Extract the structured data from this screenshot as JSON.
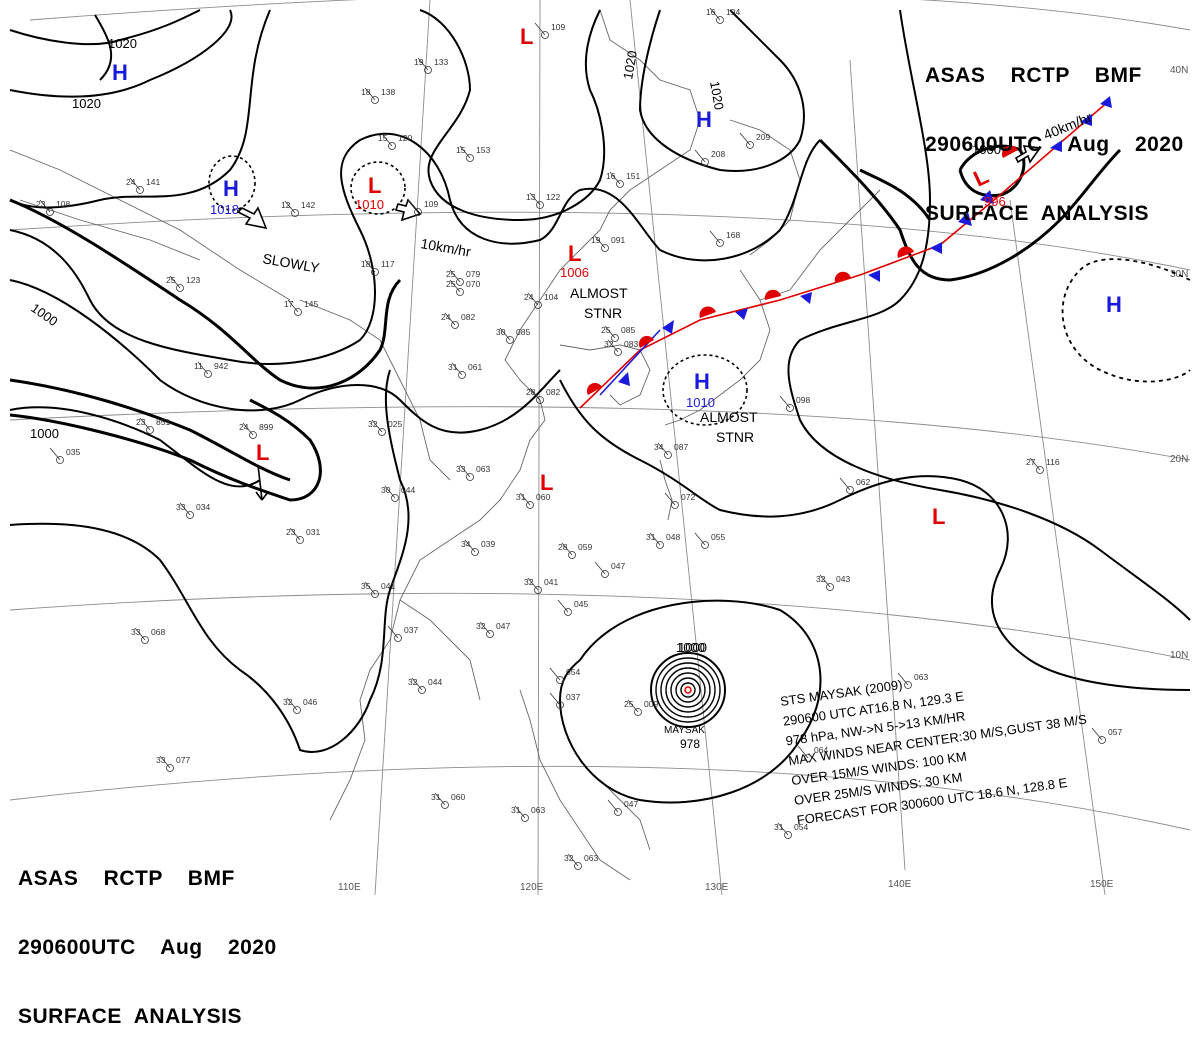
{
  "header": {
    "line1": "ASAS    RCTP    BMF",
    "line2": "290600UTC    Aug    2020",
    "line3": "SURFACE  ANALYSIS"
  },
  "colors": {
    "high": "#1a1adc",
    "low": "#e00000",
    "isobar": "#000000",
    "grid": "#888888",
    "coast": "#555555"
  },
  "grid": {
    "lon_labels": [
      "110E",
      "120E",
      "130E",
      "140E",
      "150E"
    ],
    "lat_labels": [
      "40N",
      "30N",
      "20N",
      "10N"
    ]
  },
  "isobars": {
    "labels": [
      "1020",
      "1020",
      "1020",
      "1020",
      "1000",
      "1000",
      "1000",
      "1000"
    ]
  },
  "pressure_systems": [
    {
      "type": "H",
      "value": ""
    },
    {
      "type": "H",
      "value": "1018"
    },
    {
      "type": "L",
      "value": "1010"
    },
    {
      "type": "L",
      "value": ""
    },
    {
      "type": "H",
      "value": ""
    },
    {
      "type": "L",
      "value": "1006"
    },
    {
      "type": "L",
      "value": "996"
    },
    {
      "type": "H",
      "value": ""
    },
    {
      "type": "H",
      "value": "1010"
    },
    {
      "type": "L",
      "value": ""
    },
    {
      "type": "L",
      "value": ""
    },
    {
      "type": "L",
      "value": ""
    }
  ],
  "annotations": {
    "slowly": "SLOWLY",
    "speed_10": "10km/hr",
    "speed_40": "40km/hr",
    "almost_stnr_1a": "ALMOST",
    "almost_stnr_1b": "STNR",
    "almost_stnr_2a": "ALMOST",
    "almost_stnr_2b": "STNR"
  },
  "typhoon": {
    "name": "MAYSAK",
    "pressure": "978",
    "isobar_label": "1000",
    "info": [
      "STS  MAYSAK  (2009)",
      "290600 UTC  AT16.8 N, 129.3 E",
      "978 hPa, NW->N  5->13 KM/HR",
      "MAX WINDS NEAR CENTER:30 M/S,GUST 38 M/S",
      "OVER 15M/S WINDS: 100 KM",
      "OVER 25M/S WINDS: 30 KM",
      "FORECAST FOR 300600 UTC 18.6 N, 128.8 E"
    ]
  },
  "stations": [
    {
      "t": "24",
      "p": "141"
    },
    {
      "t": "23",
      "p": "108"
    },
    {
      "t": "25",
      "p": "123"
    },
    {
      "t": "17",
      "p": "145"
    },
    {
      "t": "11",
      "p": "942"
    },
    {
      "t": "23",
      "p": "851"
    },
    {
      "t": "24",
      "p": "899"
    },
    {
      "t": "",
      "p": "035"
    },
    {
      "t": "33",
      "p": "034"
    },
    {
      "t": "33",
      "p": "068"
    },
    {
      "t": "32",
      "p": "046"
    },
    {
      "t": "33",
      "p": "077"
    },
    {
      "t": "19",
      "p": "133"
    },
    {
      "t": "18",
      "p": "138"
    },
    {
      "t": "15",
      "p": "120"
    },
    {
      "t": "15",
      "p": "153"
    },
    {
      "t": "12",
      "p": "142"
    },
    {
      "t": "",
      "p": "109"
    },
    {
      "t": "18",
      "p": "117"
    },
    {
      "t": "13",
      "p": "122"
    },
    {
      "t": "",
      "p": "109"
    },
    {
      "t": "16",
      "p": "194"
    },
    {
      "t": "16",
      "p": "151"
    },
    {
      "t": "",
      "p": "208"
    },
    {
      "t": "",
      "p": "209"
    },
    {
      "t": "19",
      "p": "091"
    },
    {
      "t": "",
      "p": "168"
    },
    {
      "t": "25",
      "p": "079"
    },
    {
      "t": "25",
      "p": "070"
    },
    {
      "t": "24",
      "p": "104"
    },
    {
      "t": "24",
      "p": "082"
    },
    {
      "t": "30",
      "p": "085"
    },
    {
      "t": "31",
      "p": "061"
    },
    {
      "t": "32",
      "p": "025"
    },
    {
      "t": "28",
      "p": "082"
    },
    {
      "t": "33",
      "p": "063"
    },
    {
      "t": "30",
      "p": "044"
    },
    {
      "t": "31",
      "p": "060"
    },
    {
      "t": "23",
      "p": "031"
    },
    {
      "t": "34",
      "p": "039"
    },
    {
      "t": "28",
      "p": "059"
    },
    {
      "t": "",
      "p": "047"
    },
    {
      "t": "35",
      "p": "041"
    },
    {
      "t": "32",
      "p": "041"
    },
    {
      "t": "",
      "p": "045"
    },
    {
      "t": "32",
      "p": "047"
    },
    {
      "t": "",
      "p": "037"
    },
    {
      "t": "32",
      "p": "044"
    },
    {
      "t": "25",
      "p": "085"
    },
    {
      "t": "32",
      "p": "083"
    },
    {
      "t": "34",
      "p": "087"
    },
    {
      "t": "",
      "p": "098"
    },
    {
      "t": "",
      "p": "072"
    },
    {
      "t": "31",
      "p": "048"
    },
    {
      "t": "",
      "p": "055"
    },
    {
      "t": "",
      "p": "062"
    },
    {
      "t": "27",
      "p": "116"
    },
    {
      "t": "32",
      "p": "043"
    },
    {
      "t": "25",
      "p": "009"
    },
    {
      "t": "",
      "p": "054"
    },
    {
      "t": "",
      "p": "037"
    },
    {
      "t": "31",
      "p": "060"
    },
    {
      "t": "31",
      "p": "063"
    },
    {
      "t": "",
      "p": "047"
    },
    {
      "t": "32",
      "p": "063"
    },
    {
      "t": "",
      "p": "064"
    },
    {
      "t": "",
      "p": "063"
    },
    {
      "t": "",
      "p": "057"
    },
    {
      "t": "31",
      "p": "054"
    }
  ]
}
